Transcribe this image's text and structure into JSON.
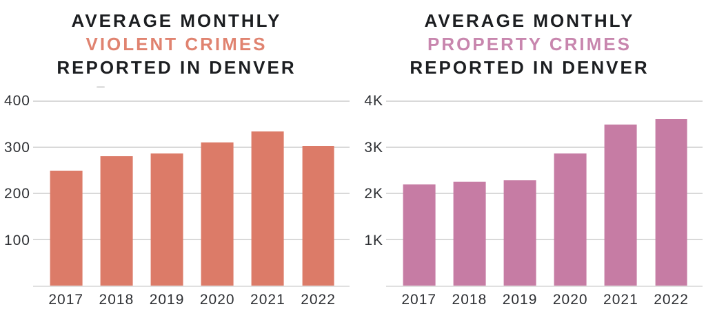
{
  "colors": {
    "background": "#FFFFFF",
    "title_text": "#1C1E21",
    "axis_text": "#2D2F33",
    "gridline": "#D9D9D9",
    "baseline": "#E0E0E0"
  },
  "chart_data": [
    {
      "type": "bar",
      "title": {
        "line1": "AVERAGE MONTHLY",
        "accent": "VIOLENT CRIMES",
        "line3": "REPORTED IN DENVER"
      },
      "categories": [
        "2017",
        "2018",
        "2019",
        "2020",
        "2021",
        "2022"
      ],
      "values": [
        250,
        280,
        286,
        310,
        334,
        303
      ],
      "xlabel": "",
      "ylabel": "",
      "ylim": [
        0,
        400
      ],
      "yticks": [
        100,
        200,
        300,
        400
      ],
      "ytick_labels": [
        "100",
        "200",
        "300",
        "400"
      ],
      "grid": true,
      "legend": "none",
      "colors": {
        "bar": "#DC7B68",
        "accent": "#E08370"
      }
    },
    {
      "type": "bar",
      "title": {
        "line1": "AVERAGE MONTHLY",
        "accent": "PROPERTY CRIMES",
        "line3": "REPORTED IN DENVER"
      },
      "categories": [
        "2017",
        "2018",
        "2019",
        "2020",
        "2021",
        "2022"
      ],
      "values": [
        2190,
        2250,
        2290,
        2870,
        3500,
        3610
      ],
      "xlabel": "",
      "ylabel": "",
      "ylim": [
        0,
        4000
      ],
      "yticks": [
        1000,
        2000,
        3000,
        4000
      ],
      "ytick_labels": [
        "1K",
        "2K",
        "3K",
        "4K"
      ],
      "grid": true,
      "legend": "none",
      "colors": {
        "bar": "#C67CA4",
        "accent": "#C886AE"
      }
    }
  ]
}
